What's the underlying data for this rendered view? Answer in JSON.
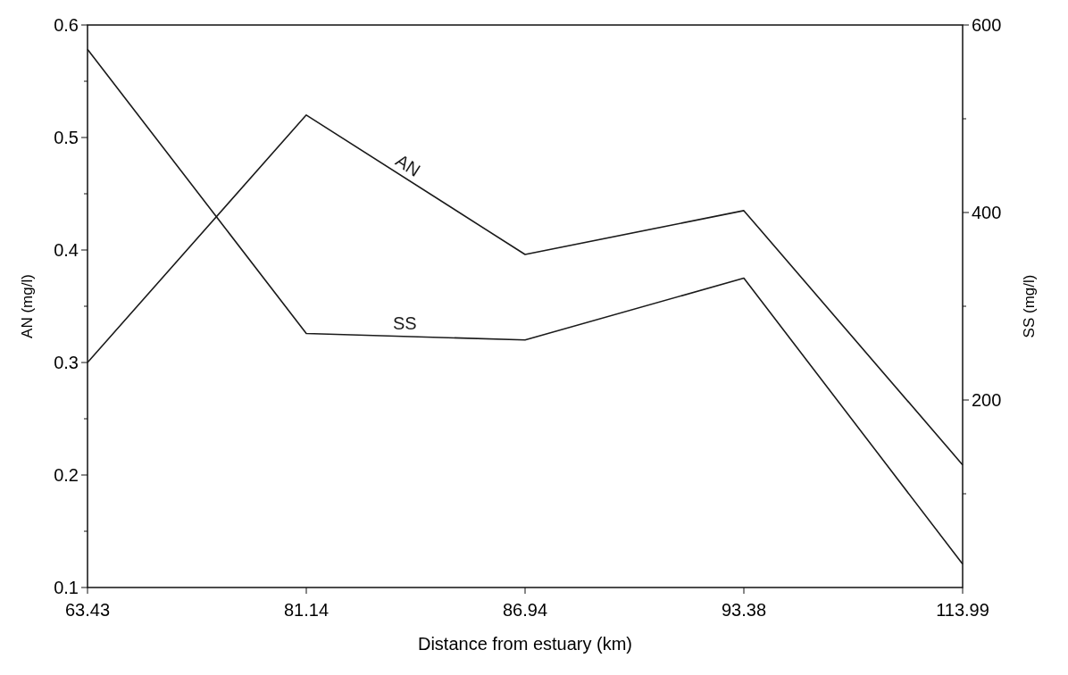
{
  "chart_data": {
    "type": "line",
    "xlabel": "Distance from estuary (km)",
    "ylabel": "AN (mg/l)",
    "y2label": "SS (mg/l)",
    "categories": [
      "63.43",
      "81.14",
      "86.94",
      "93.38",
      "113.99"
    ],
    "series": [
      {
        "name": "AN",
        "color": "#1a1a1a",
        "values": [
          0.3,
          0.52,
          0.396,
          0.435,
          0.209
        ]
      },
      {
        "name": "SS",
        "color": "#1a1a1a",
        "axis": "y2",
        "values": [
          574,
          271,
          264,
          330,
          25
        ]
      }
    ],
    "ylim": [
      0.1,
      0.6
    ],
    "yticks": [
      0.1,
      {
        "value": 0.15,
        "label": null
      },
      0.2,
      {
        "value": 0.25,
        "label": null
      },
      0.3,
      {
        "value": 0.35,
        "label": null
      },
      0.4,
      {
        "value": 0.45,
        "label": null
      },
      0.5,
      {
        "value": 0.55,
        "label": null
      },
      0.6
    ],
    "y2lim": [
      0,
      600
    ],
    "y2ticks": [
      {
        "value": 100,
        "label": null
      },
      200,
      {
        "value": 300,
        "label": null
      },
      400,
      {
        "value": 500,
        "label": null
      },
      600
    ],
    "grid": false,
    "marker": "none",
    "line_style": "solid"
  }
}
